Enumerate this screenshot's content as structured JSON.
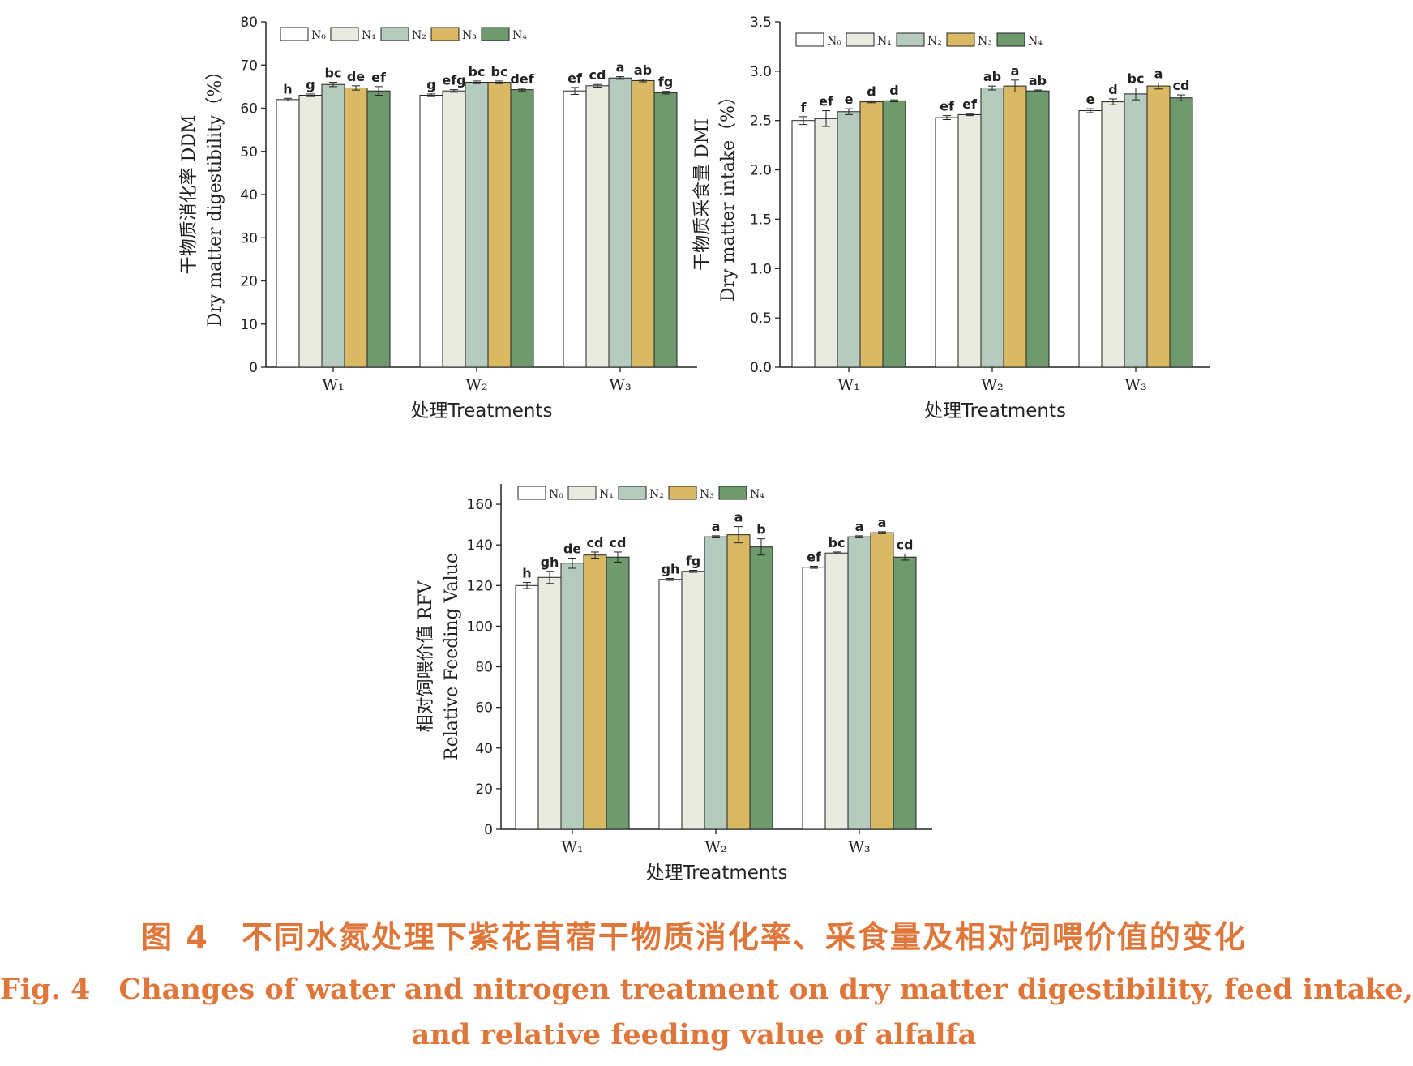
{
  "legend_labels": [
    "N₀",
    "N₁",
    "N₂",
    "N₃",
    "N₄"
  ],
  "series_colors": [
    "#ffffff",
    "#e9ebe0",
    "#b5cbbd",
    "#d9b964",
    "#6f9a6e"
  ],
  "caption": {
    "cn": "图 4　不同水氮处理下紫花苜蓿干物质消化率、采食量及相对饲喂价值的变化",
    "en_line1": "Fig. 4　Changes of water and nitrogen treatment on dry matter digestibility, feed intake,",
    "en_line2": "and relative feeding value of alfalfa"
  },
  "chart_data": [
    {
      "type": "bar",
      "xlabel": "处理Treatments",
      "ylabel_cn": "干物质消化率 DDM",
      "ylabel_en": "Dry matter digestibility（%）",
      "ylim": [
        0,
        80
      ],
      "yticks": [
        "0",
        "10",
        "20",
        "30",
        "40",
        "50",
        "60",
        "70",
        "80"
      ],
      "categories": [
        "W₁",
        "W₂",
        "W₃"
      ],
      "legend_position": "top-left",
      "series": [
        {
          "name": "N₀",
          "values": [
            62.0,
            63.0,
            64.0
          ],
          "errors": [
            0.3,
            0.3,
            0.8
          ],
          "letters": [
            "h",
            "g",
            "ef"
          ]
        },
        {
          "name": "N₁",
          "values": [
            63.0,
            64.0,
            65.2
          ],
          "errors": [
            0.3,
            0.3,
            0.3
          ],
          "letters": [
            "g",
            "efg",
            "cd"
          ]
        },
        {
          "name": "N₂",
          "values": [
            65.5,
            66.0,
            67.0
          ],
          "errors": [
            0.5,
            0.3,
            0.3
          ],
          "letters": [
            "bc",
            "bc",
            "a"
          ]
        },
        {
          "name": "N₃",
          "values": [
            64.7,
            66.0,
            66.4
          ],
          "errors": [
            0.5,
            0.3,
            0.3
          ],
          "letters": [
            "de",
            "bc",
            "ab"
          ]
        },
        {
          "name": "N₄",
          "values": [
            64.0,
            64.3,
            63.6
          ],
          "errors": [
            1.0,
            0.3,
            0.3
          ],
          "letters": [
            "ef",
            "def",
            "fg"
          ]
        }
      ]
    },
    {
      "type": "bar",
      "xlabel": "处理Treatments",
      "ylabel_cn": "干物质采食量 DMI",
      "ylabel_en": "Dry matter intake（%）",
      "ylim": [
        0,
        3.5
      ],
      "yticks": [
        "0.0",
        "0.5",
        "1.0",
        "1.5",
        "2.0",
        "2.5",
        "3.0",
        "3.5"
      ],
      "categories": [
        "W₁",
        "W₂",
        "W₃"
      ],
      "legend_position": "top-left",
      "series": [
        {
          "name": "N₀",
          "values": [
            2.5,
            2.53,
            2.6
          ],
          "errors": [
            0.04,
            0.02,
            0.02
          ],
          "letters": [
            "f",
            "ef",
            "e"
          ]
        },
        {
          "name": "N₁",
          "values": [
            2.52,
            2.56,
            2.69
          ],
          "errors": [
            0.08,
            0.01,
            0.03
          ],
          "letters": [
            "ef",
            "ef",
            "d"
          ]
        },
        {
          "name": "N₂",
          "values": [
            2.59,
            2.83,
            2.77
          ],
          "errors": [
            0.03,
            0.02,
            0.06
          ],
          "letters": [
            "e",
            "ab",
            "bc"
          ]
        },
        {
          "name": "N₃",
          "values": [
            2.69,
            2.85,
            2.85
          ],
          "errors": [
            0.01,
            0.06,
            0.03
          ],
          "letters": [
            "d",
            "a",
            "a"
          ]
        },
        {
          "name": "N₄",
          "values": [
            2.7,
            2.8,
            2.73
          ],
          "errors": [
            0.01,
            0.01,
            0.03
          ],
          "letters": [
            "d",
            "ab",
            "cd"
          ]
        }
      ]
    },
    {
      "type": "bar",
      "xlabel": "处理Treatments",
      "ylabel_cn": "相对饲喂价值 RFV",
      "ylabel_en": "Relative Feeding Value",
      "ylim": [
        0,
        170
      ],
      "yticks": [
        "0",
        "20",
        "40",
        "60",
        "80",
        "100",
        "120",
        "140",
        "160"
      ],
      "categories": [
        "W₁",
        "W₂",
        "W₃"
      ],
      "legend_position": "top-left",
      "series": [
        {
          "name": "N₀",
          "values": [
            120,
            123,
            129
          ],
          "errors": [
            1.5,
            0.5,
            0.5
          ],
          "letters": [
            "h",
            "gh",
            "ef"
          ]
        },
        {
          "name": "N₁",
          "values": [
            124,
            127,
            136
          ],
          "errors": [
            3.0,
            0.5,
            0.5
          ],
          "letters": [
            "gh",
            "fg",
            "bc"
          ]
        },
        {
          "name": "N₂",
          "values": [
            131,
            144,
            144
          ],
          "errors": [
            2.5,
            0.5,
            0.5
          ],
          "letters": [
            "de",
            "a",
            "a"
          ]
        },
        {
          "name": "N₃",
          "values": [
            135,
            145,
            146
          ],
          "errors": [
            1.5,
            4.0,
            0.5
          ],
          "letters": [
            "cd",
            "a",
            "a"
          ]
        },
        {
          "name": "N₄",
          "values": [
            134,
            139,
            134
          ],
          "errors": [
            2.5,
            4.0,
            1.5
          ],
          "letters": [
            "cd",
            "b",
            "cd"
          ]
        }
      ]
    }
  ]
}
